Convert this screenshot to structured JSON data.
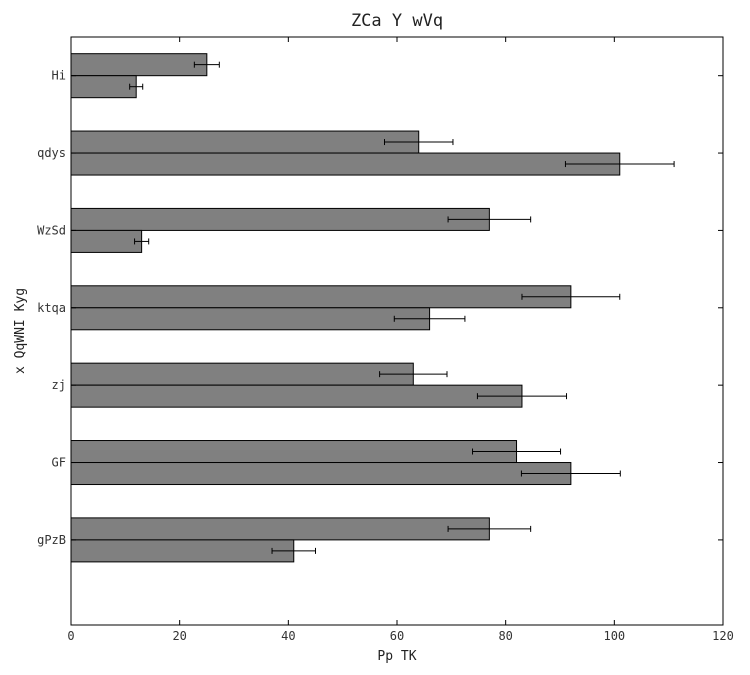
{
  "chart_data": {
    "type": "bar",
    "orientation": "horizontal",
    "title": "ZCa Y wVq",
    "xlabel": "Pp TK",
    "ylabel": "x QqWNI Kyg",
    "xlim": [
      0,
      120
    ],
    "xticks": [
      0,
      20,
      40,
      60,
      80,
      100,
      120
    ],
    "categories": [
      "Hi",
      "qdys",
      "WzSd",
      "ktqa",
      "zj",
      "GF",
      "gPzB"
    ],
    "series": [
      {
        "color": "#808080",
        "values": [
          25,
          64,
          77,
          92,
          63,
          82,
          77
        ],
        "errors": [
          2.3,
          6.3,
          7.6,
          9.0,
          6.2,
          8.1,
          7.6
        ]
      },
      {
        "color": "#808080",
        "values": [
          12,
          101,
          13,
          66,
          83,
          92,
          41
        ],
        "errors": [
          1.2,
          10.0,
          1.3,
          6.5,
          8.2,
          9.1,
          4.0
        ]
      }
    ],
    "grid": false,
    "legend": "none"
  }
}
